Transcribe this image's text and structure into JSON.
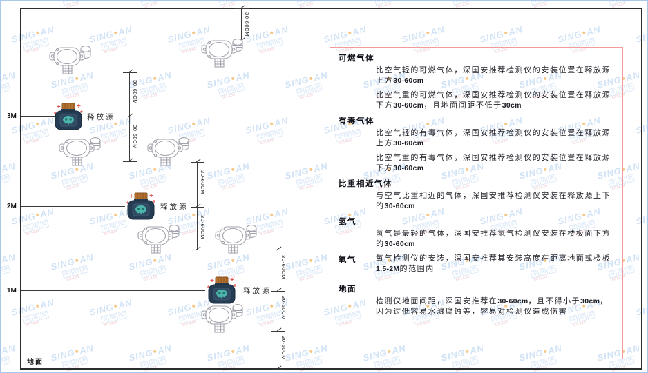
{
  "watermark": {
    "brand": "SING",
    "brand2": "AN",
    "cjk": [
      "深",
      "国",
      "安"
    ],
    "contact": "661434",
    "logo_color": "#aecdef",
    "dot_color": "#f0a030",
    "contact_color": "#e8aab4"
  },
  "axis": {
    "m3": "3M",
    "m2": "2M",
    "m1": "1M",
    "ground": "地面"
  },
  "diagram": {
    "source_label": "释放源",
    "dim_label": "30-60CM"
  },
  "colors": {
    "panel_border": "#f49a9a",
    "source_body": "#263c52",
    "source_cap": "#b5722f",
    "source_face": "#4db6ac",
    "detector_stroke": "#a3a3ad",
    "sparkle": "#e05656"
  },
  "panel": {
    "sections": [
      {
        "heading": "可燃气体",
        "paragraphs": [
          "比空气轻的可燃气体，深国安推荐检测仪的安装位置在释放源上方30-60cm",
          "比空气重的可燃气体，深国安推荐检测仪的安装位置在释放源下方30-60cm，且地面间距不低于30cm"
        ]
      },
      {
        "heading": "有毒气体",
        "paragraphs": [
          "比空气轻的有毒气体，深国安推荐检测仪的安装位置在释放源上方30-60cm",
          "比空气重的有毒气体，深国安推荐检测仪的安装位置在释放源下方30-60cm"
        ]
      },
      {
        "heading": "比重相近气体",
        "paragraphs": [
          "与空气比重相近的气体，深国安推荐检测仪安装在释放源上下的30-60cm"
        ]
      },
      {
        "heading": "氢气",
        "paragraphs": [
          "氢气是最轻的气体，深国安推荐氢气检测仪安装在楼板面下方的30-60cm"
        ]
      },
      {
        "heading": "氧气",
        "inline": true,
        "paragraphs": [
          "氧气检测仪的安装，深国安推荐其安装高度在距离地面或楼板1.5-2M的范围内"
        ]
      },
      {
        "heading": "地面",
        "paragraphs": [
          "检测仪地面间距，深国安推荐在30-60cm，且不得小于30cm，因为过低容易水溅腐蚀等，容易对检测仪造成伤害"
        ]
      }
    ]
  }
}
